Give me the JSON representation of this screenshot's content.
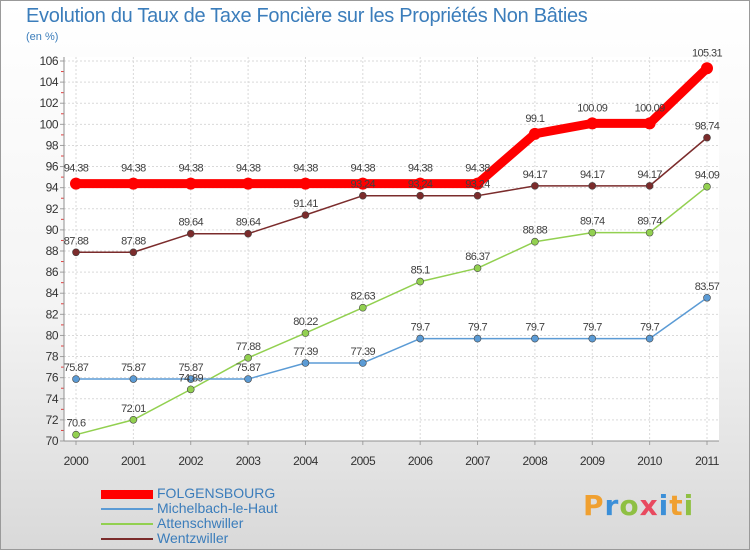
{
  "title": "Evolution du Taux de Taxe Foncière sur les Propriétés Non Bâties",
  "unit_label": "(en %)",
  "logo": {
    "text": "Proxiti",
    "letter_colors": [
      "#f0a030",
      "#3b8fd8",
      "#8fc043",
      "#e84a5f",
      "#3b8fd8",
      "#f0a030",
      "#8fc043"
    ]
  },
  "chart_data": {
    "type": "line",
    "title": "Evolution du Taux de Taxe Foncière sur les Propriétés Non Bâties",
    "ylabel": "(en %)",
    "xlabel": "",
    "ylim": [
      70,
      106
    ],
    "yticks": [
      70,
      72,
      74,
      76,
      78,
      80,
      82,
      84,
      86,
      88,
      90,
      92,
      94,
      96,
      98,
      100,
      102,
      104,
      106
    ],
    "x": [
      "2000",
      "2001",
      "2002",
      "2003",
      "2004",
      "2005",
      "2006",
      "2007",
      "2008",
      "2009",
      "2010",
      "2011"
    ],
    "grid": true,
    "legend_position": "bottom-left",
    "series": [
      {
        "name": "FOLGENSBOURG",
        "color": "#ff0000",
        "highlight": true,
        "values": [
          94.38,
          94.38,
          94.38,
          94.38,
          94.38,
          94.38,
          94.38,
          94.38,
          99.1,
          100.09,
          100.09,
          105.31
        ],
        "labels": [
          "94.38",
          "94.38",
          "94.38",
          "94.38",
          "94.38",
          "94.38",
          "94.38",
          "94.38",
          "99.1",
          "100.09",
          "100.09",
          "105.31"
        ]
      },
      {
        "name": "Michelbach-le-Haut",
        "color": "#5b9bd5",
        "values": [
          75.87,
          75.87,
          75.87,
          75.87,
          77.39,
          77.39,
          79.7,
          79.7,
          79.7,
          79.7,
          79.7,
          83.57
        ],
        "labels": [
          "75.87",
          "75.87",
          "75.87",
          "75.87",
          "77.39",
          "77.39",
          "79.7",
          "79.7",
          "79.7",
          "79.7",
          "79.7",
          "83.57"
        ]
      },
      {
        "name": "Attenschwiller",
        "color": "#92d050",
        "values": [
          70.6,
          72.01,
          74.89,
          77.88,
          80.22,
          82.63,
          85.1,
          86.37,
          88.88,
          89.74,
          89.74,
          94.09
        ],
        "labels": [
          "70.6",
          "72.01",
          "74.89",
          "77.88",
          "80.22",
          "82.63",
          "85.1",
          "86.37",
          "88.88",
          "89.74",
          "89.74",
          "94.09"
        ]
      },
      {
        "name": "Wentzwiller",
        "color": "#7b2c2c",
        "values": [
          87.88,
          87.88,
          89.64,
          89.64,
          91.41,
          93.24,
          93.24,
          93.24,
          94.17,
          94.17,
          94.17,
          98.74
        ],
        "labels": [
          "87.88",
          "87.88",
          "89.64",
          "89.64",
          "91.41",
          "93.24",
          "93.24",
          "93.24",
          "94.17",
          "94.17",
          "94.17",
          "98.74"
        ]
      }
    ]
  }
}
